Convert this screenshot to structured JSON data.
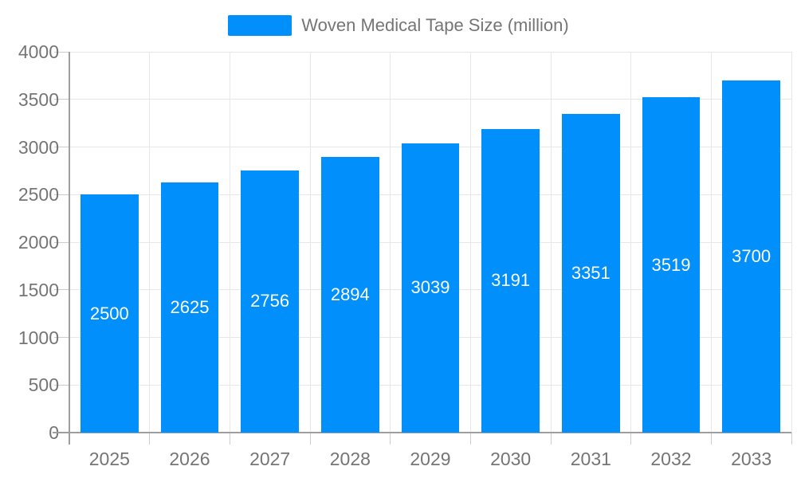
{
  "legend_position": "top",
  "chart_data": {
    "type": "bar",
    "categories": [
      "2025",
      "2026",
      "2027",
      "2028",
      "2029",
      "2030",
      "2031",
      "2032",
      "2033"
    ],
    "series": [
      {
        "name": "Woven Medical Tape Size (million)",
        "values": [
          2500,
          2625,
          2756,
          2894,
          3039,
          3191,
          3351,
          3519,
          3700
        ]
      }
    ],
    "ylabel": "",
    "xlabel": "",
    "ylim": [
      0,
      4000
    ],
    "ytick_step": 500,
    "yticks": [
      0,
      500,
      1000,
      1500,
      2000,
      2500,
      3000,
      3500,
      4000
    ],
    "grid": true,
    "data_labels_position": "inside-center",
    "colors": {
      "bar": "#008ffb",
      "bar_label": "#ffffff",
      "axis_text": "#757575",
      "grid": "#e7e7e7",
      "tick": "#cccccc",
      "axis_line": "#9e9e9e",
      "background": "#ffffff"
    }
  }
}
